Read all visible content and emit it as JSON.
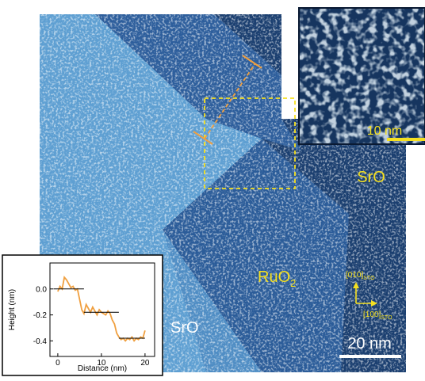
{
  "image": {
    "inset_scale": "10 nm",
    "scale": "20 nm",
    "label_srO_right": "SrO",
    "label_ruo2": {
      "main": "RuO",
      "sub": "2"
    },
    "label_sro_left": "SrO",
    "dir_010": {
      "main": "[010]",
      "sub": "STO"
    },
    "dir_100": {
      "main": "[100]",
      "sub": "STO"
    }
  },
  "chart_data": {
    "type": "line",
    "xlabel": "Distance (nm)",
    "ylabel": "Height (nm)",
    "x": [
      0,
      0.5,
      1,
      1.5,
      2,
      2.5,
      3,
      3.5,
      4,
      4.5,
      5,
      5.5,
      6,
      6.5,
      7,
      7.5,
      8,
      8.5,
      9,
      9.5,
      10,
      10.5,
      11,
      11.5,
      12,
      12.5,
      13,
      13.5,
      14,
      14.5,
      15,
      15.5,
      16,
      16.5,
      17,
      17.5,
      18,
      18.5,
      19,
      19.5,
      20
    ],
    "series": [
      {
        "color": "#f0a040",
        "values": [
          -0.02,
          0.02,
          0.0,
          0.09,
          0.07,
          0.04,
          0.01,
          0.02,
          -0.01,
          0.0,
          -0.08,
          -0.16,
          -0.19,
          -0.12,
          -0.15,
          -0.18,
          -0.14,
          -0.17,
          -0.2,
          -0.16,
          -0.18,
          -0.19,
          -0.2,
          -0.17,
          -0.19,
          -0.24,
          -0.27,
          -0.34,
          -0.37,
          -0.39,
          -0.38,
          -0.4,
          -0.38,
          -0.39,
          -0.37,
          -0.4,
          -0.38,
          -0.39,
          -0.37,
          -0.38,
          -0.32
        ]
      }
    ],
    "levels": [
      {
        "x": [
          -1,
          6
        ],
        "y": 0.0
      },
      {
        "x": [
          6,
          14
        ],
        "y": -0.18
      },
      {
        "x": [
          14,
          20
        ],
        "y": -0.38
      }
    ],
    "level_color": "#000000",
    "xlim": [
      -1.8,
      22.2
    ],
    "ylim": [
      -0.52,
      0.2
    ],
    "xticks": [
      0,
      10,
      20
    ],
    "yticks": [
      {
        "value": 0,
        "label": "0.0"
      },
      -0.2,
      -0.4
    ]
  }
}
